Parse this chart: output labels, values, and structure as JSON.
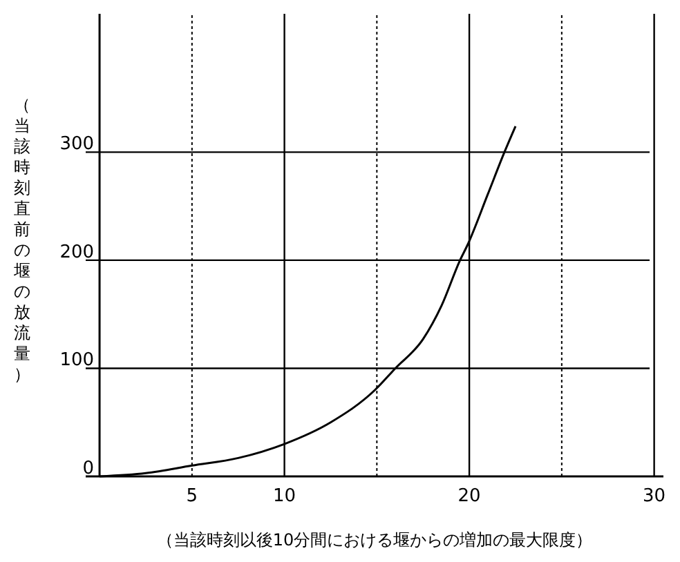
{
  "chart_data": {
    "type": "line",
    "xlabel": "（当該時刻以後10分間における堰からの増加の最大限度）",
    "ylabel": "（当該時刻直前の堰の放流量）",
    "x": [
      0,
      2.5,
      5,
      7.5,
      10,
      12.5,
      14.9,
      16,
      17.5,
      18.5,
      19.5,
      19.9,
      21,
      21.9,
      22.5
    ],
    "series": [
      {
        "color": "#000000",
        "values": [
          0,
          3,
          10,
          17,
          30,
          50,
          80,
          100,
          127,
          158,
          200,
          214,
          261,
          300,
          324
        ]
      }
    ],
    "xlim": [
      -0.75,
      30.5
    ],
    "ylim": [
      0,
      428
    ],
    "xticks": [
      5,
      10,
      20,
      30
    ],
    "yticks": [
      0,
      100,
      200,
      300
    ],
    "grid": true,
    "marker": "none",
    "line_style": "solid",
    "ref_lines": [
      {
        "axis": "x",
        "value": 5,
        "line_style": "dotted"
      },
      {
        "axis": "x",
        "value": 15,
        "line_style": "dotted"
      },
      {
        "axis": "x",
        "value": 25,
        "line_style": "dotted"
      }
    ]
  }
}
